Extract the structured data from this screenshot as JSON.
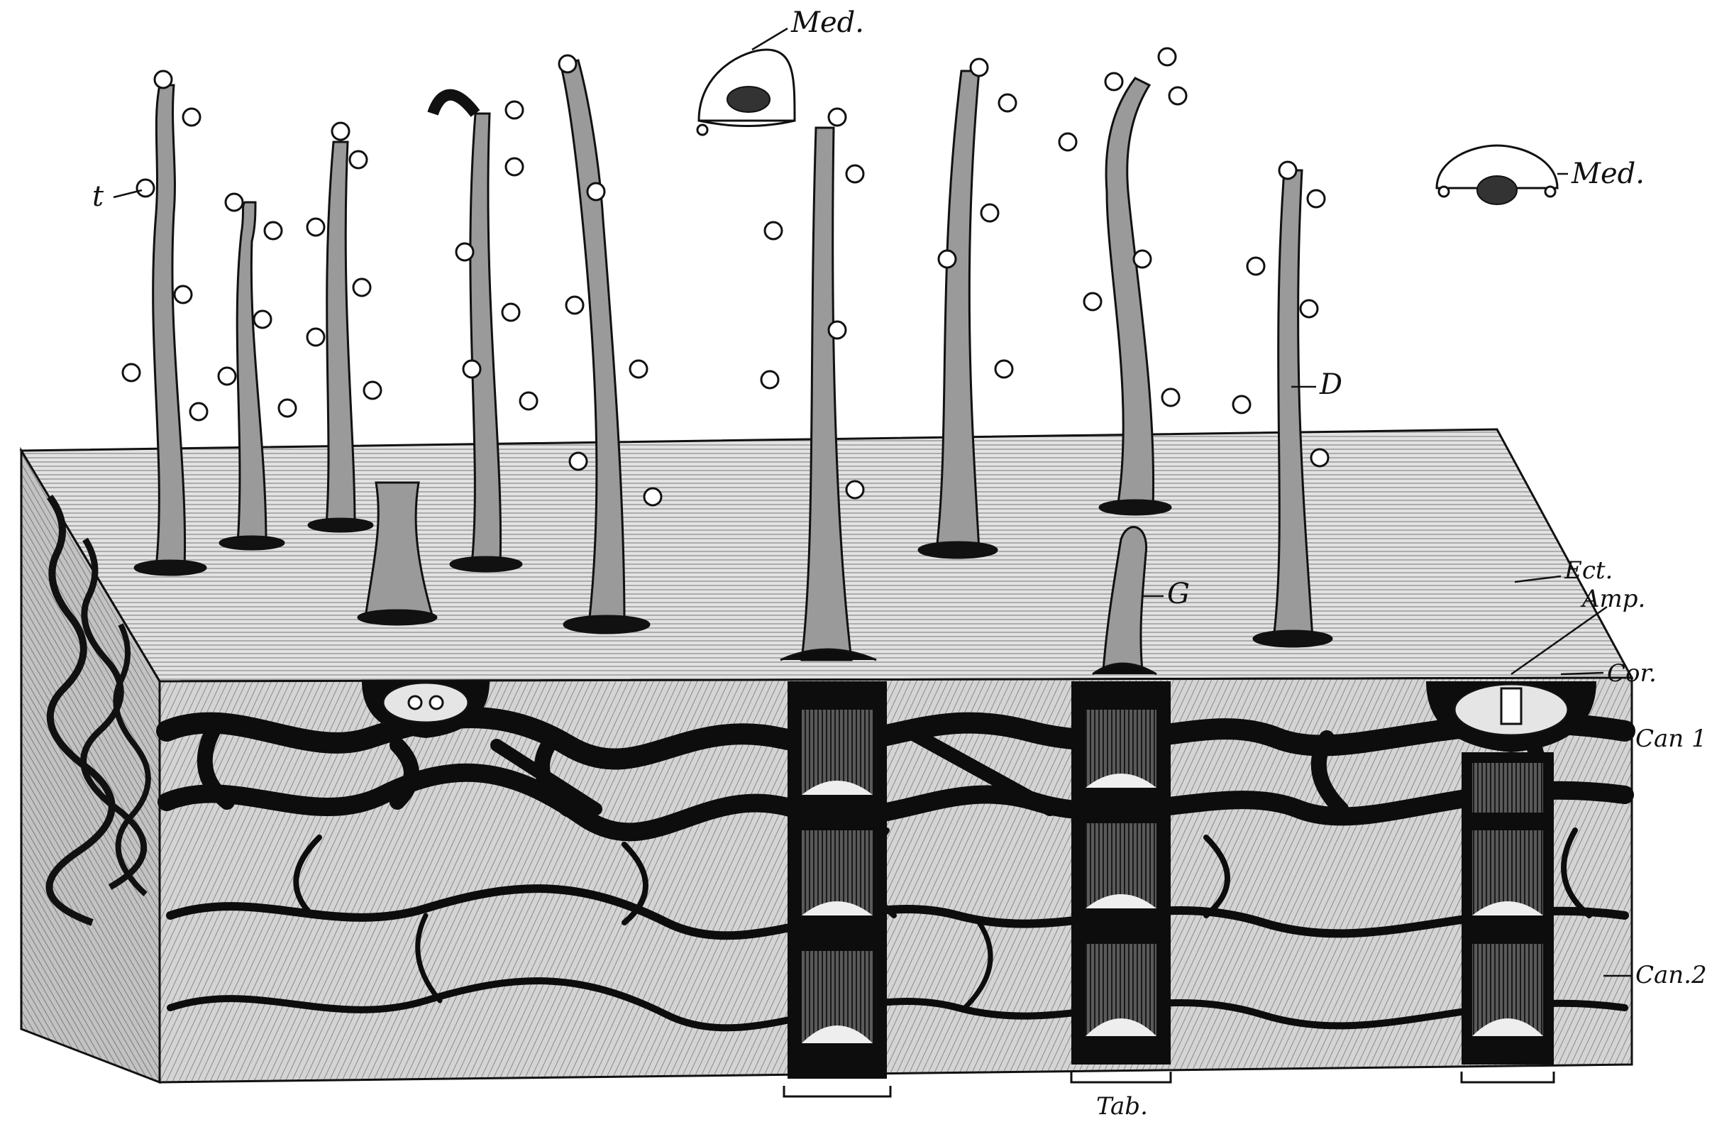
{
  "labels": {
    "med_top": "Med.",
    "med_right": "Med.",
    "t": "t",
    "d": "D",
    "g": "G",
    "ect": "Ect.",
    "amp": "Amp.",
    "cor": "Cor.",
    "can1": "Can 1",
    "can2": "Can.2",
    "tab": "Tab."
  },
  "colors": {
    "ink": "#111111",
    "paper": "#ffffff",
    "surface": "#c9c9c9",
    "block_face": "#b5b5b5",
    "canal": "#0d0d0d"
  }
}
